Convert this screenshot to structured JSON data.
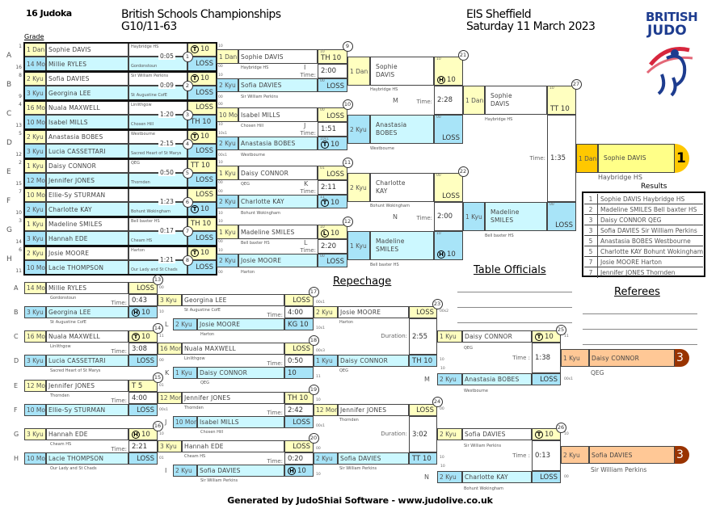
{
  "header": {
    "judoka_count": "16 Judoka",
    "title": "British Schools Championships",
    "category": "G10/11-63",
    "venue": "EIS Sheffield",
    "date": "Saturday 11 March 2023",
    "logo_line1": "BRITISH",
    "logo_line2": "JUDO",
    "grade_label": "Grade"
  },
  "colors": {
    "white_grade": "#ffffc0",
    "blue_grade": "#a8e4f8",
    "blue_name": "#ccf8ff",
    "gold": "#ffc800",
    "gold_name": "#ffff88",
    "bronze": "#ffc896",
    "bronze_badge": "#993300",
    "logo_blue": "#1d3c8f",
    "logo_red": "#d7263d"
  },
  "time_label": "Time:",
  "duration_label": "Duration:",
  "time_label_spaced": "Time :",
  "round1": [
    {
      "letter": "A",
      "match": "1",
      "time": "0:05",
      "white": {
        "seed": "1",
        "grade": "1 Dan",
        "name": "Sophie DAVIS",
        "club": "Haybridge HS",
        "icon": "T",
        "score": "10"
      },
      "blue": {
        "seed": "16",
        "grade": "14 Mon",
        "name": "Millie RYLES",
        "club": "Gordonstoun",
        "score": "LOSS"
      }
    },
    {
      "letter": "B",
      "match": "2",
      "time": "0:09",
      "white": {
        "seed": "8",
        "grade": "2 Kyu",
        "name": "Sofia DAVIES",
        "club": "Sir William Perkins",
        "icon": "T",
        "score": "10"
      },
      "blue": {
        "seed": "9",
        "grade": "3 Kyu",
        "name": "Georgina LEE",
        "club": "St Augustine CofE",
        "score": "LOSS"
      }
    },
    {
      "letter": "C",
      "match": "3",
      "time": "1:20",
      "white": {
        "seed": "4",
        "grade": "16 Mon",
        "name": "Nuala MAXWELL",
        "club": "Linlithgow",
        "score": "LOSS"
      },
      "blue": {
        "seed": "13",
        "grade": "10 Mon",
        "name": "Isabel MILLS",
        "club": "Chosen Hill",
        "score": "TH 10"
      }
    },
    {
      "letter": "D",
      "match": "4",
      "time": "2:15",
      "white": {
        "seed": "5",
        "grade": "2 Kyu",
        "name": "Anastasia BOBES",
        "club": "Westbourne",
        "icon": "T",
        "score": "10"
      },
      "blue": {
        "seed": "12",
        "grade": "3 Kyu",
        "name": "Lucia CASSETTARI",
        "club": "Sacred Heart of St Marys",
        "score": "LOSS"
      }
    },
    {
      "letter": "E",
      "match": "5",
      "time": "0:50",
      "white": {
        "seed": "2",
        "grade": "1 Kyu",
        "name": "Daisy CONNOR",
        "club": "QEG",
        "score": "TT 10"
      },
      "blue": {
        "seed": "15",
        "grade": "12 Mon",
        "name": "Jennifer JONES",
        "club": "Thornden",
        "score": "LOSS"
      }
    },
    {
      "letter": "F",
      "match": "6",
      "time": "1:23",
      "white": {
        "seed": "7",
        "grade": "10 Mon",
        "name": "Ellie-Sy STURMAN",
        "club": "",
        "score": "LOSS"
      },
      "blue": {
        "seed": "10",
        "grade": "2 Kyu",
        "name": "Charlotte KAY",
        "club": "Bohunt Wokingham",
        "icon": "T",
        "score": "10"
      }
    },
    {
      "letter": "G",
      "match": "7",
      "time": "0:17",
      "white": {
        "seed": "3",
        "grade": "1 Kyu",
        "name": "Madeline SMILES",
        "club": "Bell baxter HS",
        "score": "TH 10"
      },
      "blue": {
        "seed": "14",
        "grade": "3 Kyu",
        "name": "Hannah EDE",
        "club": "Cheam HS",
        "score": "LOSS"
      }
    },
    {
      "letter": "H",
      "match": "8",
      "time": "1:21",
      "white": {
        "seed": "6",
        "grade": "2 Kyu",
        "name": "Josie MOORE",
        "club": "Harton",
        "icon": "T",
        "score": "10"
      },
      "blue": {
        "seed": "11",
        "grade": "10 Mon",
        "name": "Lacie THOMPSON",
        "club": "Our Lady and St Chads",
        "score": "LOSS"
      }
    }
  ],
  "quarterfinals": [
    {
      "match": "9",
      "letter": "I",
      "time": "2:00",
      "marks": [
        "10",
        "00",
        "10",
        "00"
      ],
      "white": {
        "grade": "1 Dan",
        "name": "Sophie DAVIS",
        "club": "Haybridge HS",
        "small": "10",
        "score": "TH 10"
      },
      "blue": {
        "grade": "2 Kyu",
        "name": "Sofia DAVIES",
        "club": "Sir William Perkins",
        "small": "00",
        "score": "LOSS"
      }
    },
    {
      "match": "10",
      "letter": "J",
      "time": "1:51",
      "marks": [
        "00",
        "10",
        "10s1",
        "00s1"
      ],
      "white": {
        "grade": "10 Mon",
        "name": "Isabel MILLS",
        "club": "Chosen Hill",
        "small": "00",
        "score": "LOSS"
      },
      "blue": {
        "grade": "2 Kyu",
        "name": "Anastasia BOBES",
        "club": "Westbourne",
        "small": "10s1",
        "icon": "T",
        "score": "10"
      }
    },
    {
      "match": "11",
      "letter": "K",
      "time": "2:11",
      "marks": [
        "10",
        "00",
        "00",
        "10"
      ],
      "white": {
        "grade": "1 Kyu",
        "name": "Daisy CONNOR",
        "club": "QEG",
        "small": "01",
        "score": "LOSS"
      },
      "blue": {
        "grade": "2 Kyu",
        "name": "Charlotte KAY",
        "club": "Bohunt Wokingham",
        "small": "11",
        "icon": "T",
        "score": "10"
      }
    },
    {
      "match": "12",
      "letter": "L",
      "time": "2:20",
      "marks": [
        "10",
        "00",
        "10",
        "00"
      ],
      "white": {
        "grade": "1 Kyu",
        "name": "Madeline SMILES",
        "club": "Bell baxter HS",
        "small": "10",
        "icon": "L",
        "score": "10"
      },
      "blue": {
        "grade": "2 Kyu",
        "name": "Josie MOORE",
        "club": "Harton",
        "small": "00",
        "score": "LOSS"
      }
    }
  ],
  "semifinals": [
    {
      "match": "21",
      "letter": "M",
      "time": "2:28",
      "white": {
        "grade": "1 Dan",
        "name": "Sophie DAVIS",
        "club": "Haybridge HS",
        "small": "10",
        "icon": "H",
        "score": "10"
      },
      "blue": {
        "grade": "2 Kyu",
        "name": "Anastasia BOBES",
        "club": "Westbourne",
        "small": "00",
        "score": "LOSS"
      }
    },
    {
      "match": "22",
      "letter": "N",
      "time": "2:00",
      "white": {
        "grade": "2 Kyu",
        "name": "Charlotte KAY",
        "club": "Bohunt Wokingham",
        "small": "00",
        "score": "LOSS"
      },
      "blue": {
        "grade": "1 Kyu",
        "name": "Madeline SMILES",
        "club": "Bell baxter HS",
        "small": "10",
        "icon": "H",
        "score": "10"
      }
    }
  ],
  "final": {
    "match": "27",
    "time": "1:35",
    "white": {
      "grade": "1 Dan",
      "name": "Sophie DAVIS",
      "club": "Haybridge HS",
      "small": "10",
      "score": "TT 10"
    },
    "blue": {
      "grade": "1 Kyu",
      "name": "Madeline SMILES",
      "club": "Bell baxter HS",
      "small": "00",
      "score": "LOSS"
    }
  },
  "winner": {
    "place": "1",
    "grade": "1 Dan",
    "name": "Sophie DAVIS",
    "club": "Haybridge HS"
  },
  "results": {
    "title": "Results",
    "rows": [
      {
        "place": "1",
        "text": "Sophie DAVIS Haybridge HS"
      },
      {
        "place": "2",
        "text": "Madeline SMILES Bell baxter HS"
      },
      {
        "place": "3",
        "text": "Daisy CONNOR QEG"
      },
      {
        "place": "3",
        "text": "Sofia DAVIES Sir William Perkins"
      },
      {
        "place": "5",
        "text": "Anastasia BOBES Westbourne"
      },
      {
        "place": "5",
        "text": "Charlotte KAY Bohunt Wokingham"
      },
      {
        "place": "7",
        "text": "Josie MOORE Harton"
      },
      {
        "place": "7",
        "text": "Jennifer JONES Thornden"
      }
    ]
  },
  "officials": {
    "table_title": "Table Officials",
    "referees_title": "Referees"
  },
  "repechage": {
    "title": "Repechage",
    "round1": [
      {
        "match": "13",
        "time": "0:43",
        "marks": [
          "00",
          "10"
        ],
        "white": {
          "letter": "A",
          "grade": "14 Mon",
          "name": "Millie RYLES",
          "club": "Gordonstoun",
          "score": "LOSS"
        },
        "blue": {
          "letter": "B",
          "grade": "3 Kyu",
          "name": "Georgina LEE",
          "club": "St Augustine CofE",
          "icon": "H",
          "score": "10"
        }
      },
      {
        "match": "14",
        "time": "3:08",
        "marks": [
          "11",
          "00"
        ],
        "white": {
          "letter": "C",
          "grade": "16 Mon",
          "name": "Nuala MAXWELL",
          "club": "Linlithgow",
          "icon": "T",
          "score": "10"
        },
        "blue": {
          "letter": "D",
          "grade": "3 Kyu",
          "name": "Lucia CASSETTARI",
          "club": "Sacred Heart of St Marys",
          "score": "LOSS"
        }
      },
      {
        "match": "15",
        "time": "4:00",
        "marks": [
          "01",
          "00s1"
        ],
        "white": {
          "letter": "E",
          "grade": "12 Mon",
          "name": "Jennifer JONES",
          "club": "Thornden",
          "score": "T 5"
        },
        "blue": {
          "letter": "F",
          "grade": "10 Mon",
          "name": "Ellie-Sy STURMAN",
          "club": "",
          "score": "LOSS"
        }
      },
      {
        "match": "16",
        "time": "2:21",
        "marks": [
          "10",
          "01"
        ],
        "white": {
          "letter": "G",
          "grade": "3 Kyu",
          "name": "Hannah EDE",
          "club": "Cheam HS",
          "icon": "H",
          "score": "10"
        },
        "blue": {
          "letter": "H",
          "grade": "10 Mon",
          "name": "Lacie THOMPSON",
          "club": "Our Lady and St Chads",
          "score": "LOSS"
        }
      }
    ],
    "round2": [
      {
        "match": "17",
        "letter": "L",
        "time": "4:00",
        "marks": [
          "00s1",
          "10s1"
        ],
        "white": {
          "grade": "3 Kyu",
          "name": "Georgina LEE",
          "club": "St Augustine CofE",
          "score": "LOSS"
        },
        "blue": {
          "grade": "2 Kyu",
          "name": "Josie MOORE",
          "club": "Harton",
          "score": "KG 10"
        }
      },
      {
        "match": "18",
        "letter": "K",
        "time": "0:50",
        "marks": [
          "00s3",
          "11"
        ],
        "white": {
          "grade": "16 Mon",
          "name": "Nuala MAXWELL",
          "club": "Linlithgow",
          "score": "LOSS"
        },
        "blue": {
          "grade": "1 Kyu",
          "name": "Daisy CONNOR",
          "club": "QEG",
          "score": "10"
        }
      },
      {
        "match": "19",
        "letter": "J",
        "time": "2:42",
        "marks": [
          "10",
          "00s1"
        ],
        "white": {
          "grade": "12 Mon",
          "name": "Jennifer JONES",
          "club": "Thornden",
          "score": "TH 10"
        },
        "blue": {
          "grade": "10 Mon",
          "name": "Isabel MILLS",
          "club": "Chosen Hill",
          "score": "LOSS"
        }
      },
      {
        "match": "20",
        "letter": "I",
        "time": "0:20",
        "marks": [
          "00",
          "10"
        ],
        "white": {
          "grade": "3 Kyu",
          "name": "Hannah EDE",
          "club": "Cheam HS",
          "score": "LOSS"
        },
        "blue": {
          "grade": "2 Kyu",
          "name": "Sofia DAVIES",
          "club": "Sir William Perkins",
          "icon": "H",
          "score": "10"
        }
      }
    ],
    "round3": [
      {
        "match": "23",
        "time": "2:55",
        "marks": [
          "00s2",
          "10"
        ],
        "white": {
          "grade": "2 Kyu",
          "name": "Josie MOORE",
          "club": "Harton",
          "score": "LOSS"
        },
        "blue": {
          "grade": "1 Kyu",
          "name": "Daisy CONNOR",
          "club": "QEG",
          "score": "TH 10"
        }
      },
      {
        "match": "24",
        "time": "3:02",
        "marks": [
          "00",
          "10"
        ],
        "white": {
          "grade": "12 Mon",
          "name": "Jennifer JONES",
          "club": "Thornden",
          "score": "LOSS"
        },
        "blue": {
          "grade": "2 Kyu",
          "name": "Sofia DAVIES",
          "club": "Sir William Perkins",
          "score": "TT 10"
        }
      }
    ],
    "bronze": [
      {
        "match": "25",
        "letter": "M",
        "time": "1:38",
        "marks": [
          "11",
          "10",
          "00s1"
        ],
        "white": {
          "grade": "1 Kyu",
          "name": "Daisy CONNOR",
          "club": "QEG",
          "icon": "T",
          "score": "10"
        },
        "blue": {
          "grade": "2 Kyu",
          "name": "Anastasia BOBES",
          "club": "Westbourne",
          "score": "LOSS"
        }
      },
      {
        "match": "26",
        "letter": "N",
        "time": "0:13",
        "marks": [
          "10",
          "10",
          "00"
        ],
        "white": {
          "grade": "2 Kyu",
          "name": "Sofia DAVIES",
          "club": "Sir William Perkins",
          "icon": "T",
          "score": "10"
        },
        "blue": {
          "grade": "2 Kyu",
          "name": "Charlotte KAY",
          "club": "Bohunt Wokingham",
          "score": "LOSS"
        }
      }
    ],
    "bronze_winners": [
      {
        "place": "3",
        "grade": "1 Kyu",
        "name": "Daisy CONNOR",
        "club": "QEG"
      },
      {
        "place": "3",
        "grade": "2 Kyu",
        "name": "Sofia DAVIES",
        "club": "Sir William Perkins"
      }
    ]
  },
  "footer": "Generated by JudoShiai Software - www.judolive.co.uk"
}
